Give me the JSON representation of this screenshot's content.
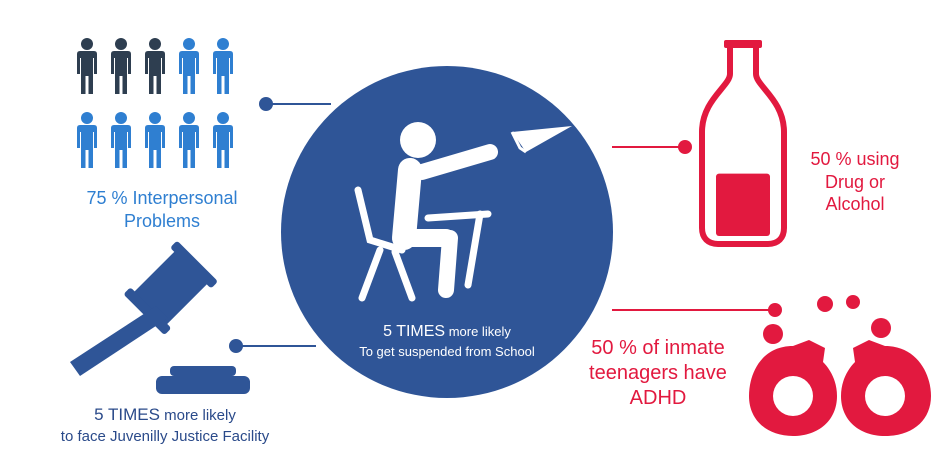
{
  "colors": {
    "navy": "#2e3e50",
    "blue": "#2f7fd1",
    "circle": "#2f5597",
    "red": "#e2193f",
    "white": "#ffffff"
  },
  "icons": {
    "people": "people-icon",
    "gavel": "gavel-icon",
    "student": "student-throwing-paper-plane-icon",
    "bottle": "bottle-icon",
    "handcuffs": "handcuffs-icon"
  },
  "center": {
    "line1_strong": "5 TIMES",
    "line1_rest": " more likely",
    "line2": "To get suspended from School"
  },
  "interpersonal": {
    "line1": "75 % Interpersonal",
    "line2": "Problems",
    "share_highlighted": 0.75
  },
  "justice": {
    "line1_strong": "5 TIMES",
    "line1_rest": " more likely",
    "line2": "to face Juvenilly Justice Facility"
  },
  "alcohol": {
    "line1": "50 % using",
    "line2": "Drug or",
    "line3": "Alcohol",
    "fill_level": 0.5
  },
  "adhd": {
    "line1": "50 % of inmate",
    "line2": "teenagers have",
    "line3": "ADHD"
  }
}
